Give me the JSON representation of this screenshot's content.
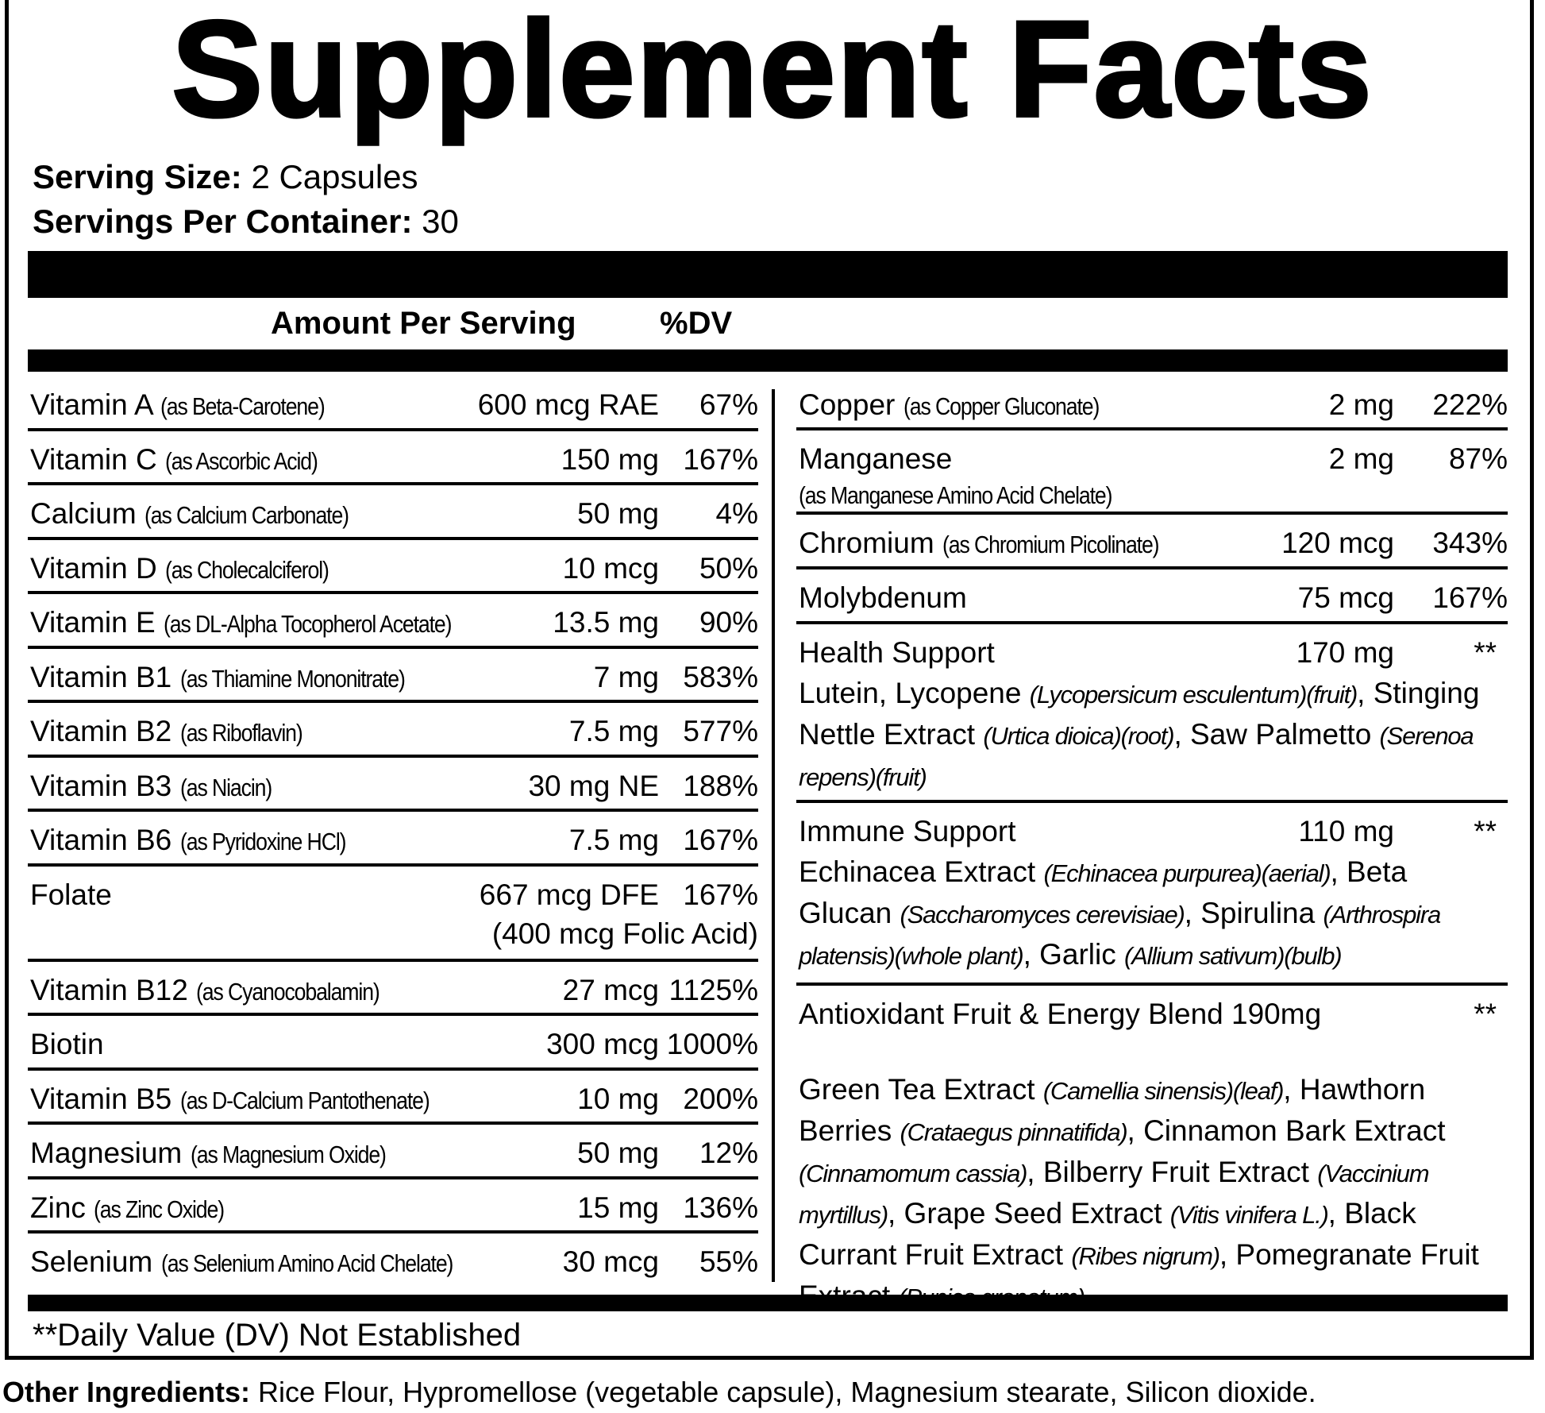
{
  "title": "Supplement Facts",
  "serving": {
    "size_label": "Serving Size:",
    "size_value": "2 Capsules",
    "per_container_label": "Servings Per Container:",
    "per_container_value": "30"
  },
  "header": {
    "amount": "Amount Per Serving",
    "dv": "%DV"
  },
  "left_rows": [
    {
      "name": "Vitamin A",
      "source": "(as Beta-Carotene)",
      "amount": "600 mcg RAE",
      "dv": "67%"
    },
    {
      "name": "Vitamin C",
      "source": "(as Ascorbic Acid)",
      "amount": "150 mg",
      "dv": "167%"
    },
    {
      "name": "Calcium",
      "source": "(as Calcium Carbonate)",
      "amount": "50 mg",
      "dv": "4%"
    },
    {
      "name": "Vitamin D",
      "source": "(as Cholecalciferol)",
      "amount": "10 mcg",
      "dv": "50%"
    },
    {
      "name": "Vitamin E",
      "source": "(as DL-Alpha Tocopherol Acetate)",
      "amount": "13.5 mg",
      "dv": "90%"
    },
    {
      "name": "Vitamin B1",
      "source": "(as Thiamine Mononitrate)",
      "amount": "7 mg",
      "dv": "583%"
    },
    {
      "name": "Vitamin B2",
      "source": "(as Riboflavin)",
      "amount": "7.5 mg",
      "dv": "577%"
    },
    {
      "name": "Vitamin B3",
      "source": "(as Niacin)",
      "amount": "30 mg NE",
      "dv": "188%"
    },
    {
      "name": "Vitamin B6",
      "source": "(as Pyridoxine HCl)",
      "amount": "7.5 mg",
      "dv": "167%"
    },
    {
      "name": "Folate",
      "source": "",
      "amount": "667 mcg DFE",
      "dv": "167%",
      "amount_note": "(400 mcg Folic Acid)"
    },
    {
      "name": "Vitamin B12",
      "source": "(as Cyanocobalamin)",
      "amount": "27 mcg",
      "dv": "1125%"
    },
    {
      "name": "Biotin",
      "source": "",
      "amount": "300 mcg",
      "dv": "1000%"
    },
    {
      "name": "Vitamin B5",
      "source": "(as D-Calcium Pantothenate)",
      "amount": "10 mg",
      "dv": "200%"
    },
    {
      "name": "Magnesium",
      "source": "(as Magnesium Oxide)",
      "amount": "50 mg",
      "dv": "12%"
    },
    {
      "name": "Zinc",
      "source": "(as Zinc Oxide)",
      "amount": "15 mg",
      "dv": "136%"
    },
    {
      "name": "Selenium",
      "source": "(as Selenium Amino Acid Chelate)",
      "amount": "30 mcg",
      "dv": "55%"
    }
  ],
  "right_rows": [
    {
      "name": "Copper",
      "source": "(as Copper Gluconate)",
      "amount": "2 mg",
      "dv": "222%"
    },
    {
      "name": "Manganese",
      "source": "(as Manganese Amino Acid Chelate)",
      "amount": "2 mg",
      "dv": "87%"
    },
    {
      "name": "Chromium",
      "source": "(as Chromium Picolinate)",
      "amount": "120 mcg",
      "dv": "343%"
    },
    {
      "name": "Molybdenum",
      "source": "",
      "amount": "75 mcg",
      "dv": "167%"
    },
    {
      "name": "Health Support",
      "source": "",
      "amount": "170 mg",
      "dv": "**",
      "description": [
        {
          "t": "Lutein, Lycopene ",
          "i": false
        },
        {
          "t": "(Lycopersicum esculentum)(fruit)",
          "i": true
        },
        {
          "t": ", Stinging Nettle Extract ",
          "i": false
        },
        {
          "t": "(Urtica dioica)(root)",
          "i": true
        },
        {
          "t": ", Saw Palmetto ",
          "i": false
        },
        {
          "t": "(Serenoa repens)(fruit)",
          "i": true
        }
      ]
    },
    {
      "name": "Immune Support",
      "source": "",
      "amount": "110 mg",
      "dv": "**",
      "description": [
        {
          "t": "Echinacea Extract ",
          "i": false
        },
        {
          "t": "(Echinacea purpurea)(aerial)",
          "i": true
        },
        {
          "t": ", Beta Glucan ",
          "i": false
        },
        {
          "t": "(Saccharomyces cerevisiae)",
          "i": true
        },
        {
          "t": ", Spirulina ",
          "i": false
        },
        {
          "t": "(Arthrospira platensis)(whole plant)",
          "i": true
        },
        {
          "t": ", Garlic ",
          "i": false
        },
        {
          "t": "(Allium sativum)(bulb)",
          "i": true
        }
      ]
    },
    {
      "name": "Antioxidant Fruit & Energy Blend 190mg",
      "source": "",
      "amount": "",
      "dv": "**",
      "description": [
        {
          "t": "Green Tea Extract ",
          "i": false
        },
        {
          "t": "(Camellia sinensis)(leaf)",
          "i": true
        },
        {
          "t": ", Hawthorn Berries ",
          "i": false
        },
        {
          "t": "(Crataegus pinnatifida)",
          "i": true
        },
        {
          "t": ", Cinnamon Bark Extract ",
          "i": false
        },
        {
          "t": "(Cinnamomum cassia)",
          "i": true
        },
        {
          "t": ", Bilberry Fruit Extract ",
          "i": false
        },
        {
          "t": "(Vaccinium myrtillus)",
          "i": true
        },
        {
          "t": ", Grape Seed Extract ",
          "i": false
        },
        {
          "t": "(Vitis vinifera L.)",
          "i": true
        },
        {
          "t": ", Black Currant Fruit Extract ",
          "i": false
        },
        {
          "t": "(Ribes nigrum)",
          "i": true
        },
        {
          "t": ", Pomegranate Fruit Extract ",
          "i": false
        },
        {
          "t": "(Punica granatum)",
          "i": true
        }
      ]
    }
  ],
  "footnote": "**Daily Value (DV) Not Established",
  "other_ingredients": {
    "label": "Other Ingredients:",
    "value": " Rice Flour, Hypromellose (vegetable capsule), Magnesium stearate, Silicon dioxide."
  }
}
